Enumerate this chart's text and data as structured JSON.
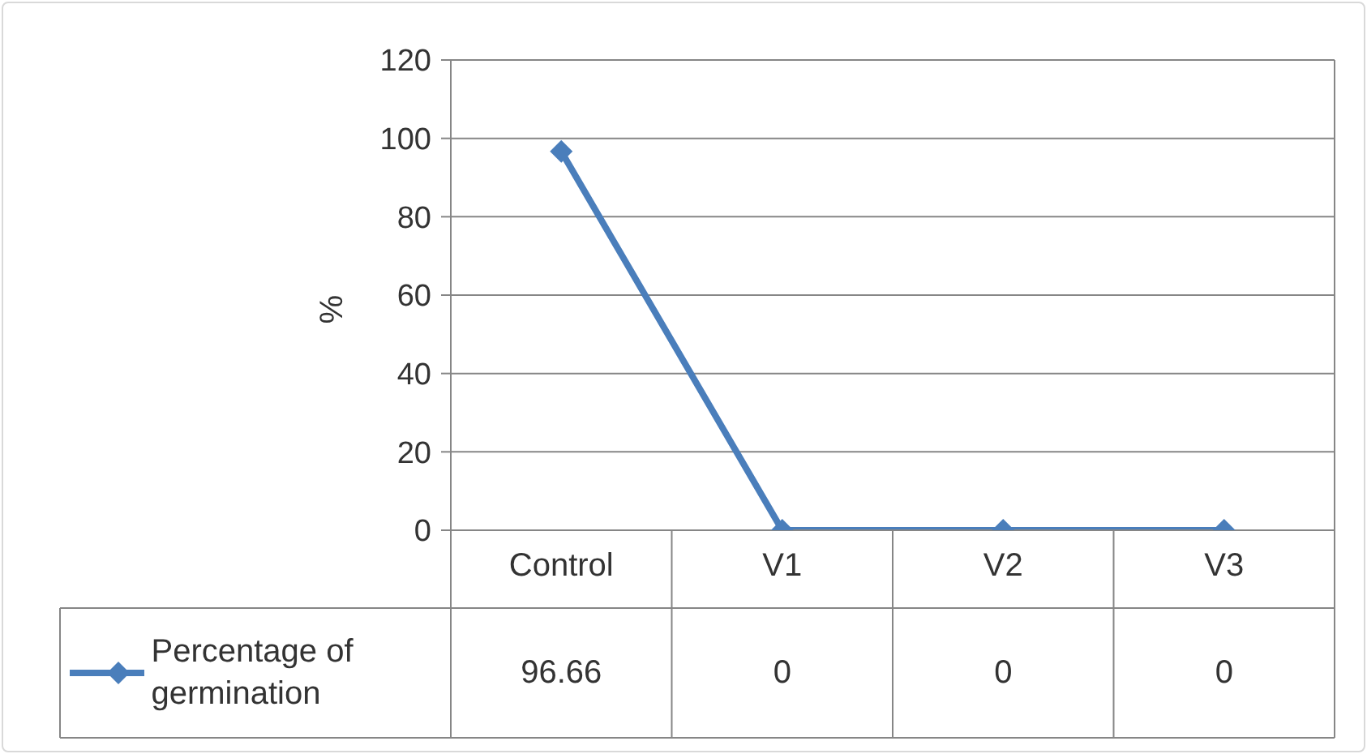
{
  "chart_data": {
    "type": "line",
    "ylabel": "%",
    "categories": [
      "Control",
      "V1",
      "V2",
      "V3"
    ],
    "series": [
      {
        "name": "Percentage of germination",
        "color": "#4a7ebb",
        "values": [
          96.66,
          0,
          0,
          0
        ]
      }
    ],
    "ylim": [
      0,
      120
    ],
    "yticks": [
      0,
      20,
      40,
      60,
      80,
      100,
      120
    ],
    "grid": "y",
    "legend": "bottom left",
    "marker": "diamond",
    "line_style": "solid",
    "data_labels": true
  }
}
